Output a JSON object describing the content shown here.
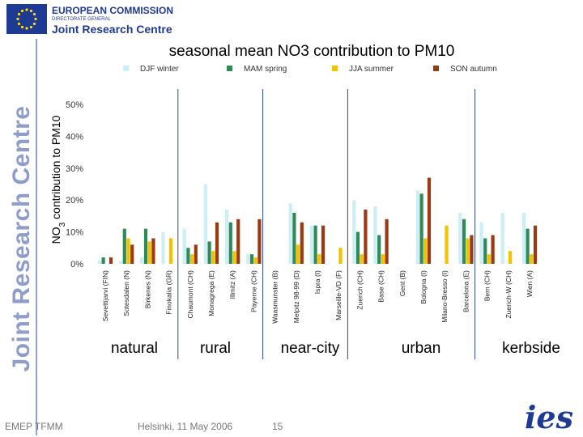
{
  "header": {
    "org_line1": "EUROPEAN COMMISSION",
    "org_line2": "DIRECTORATE GENERAL",
    "org_line3": "Joint Research Centre",
    "side_title": "Joint Research Centre"
  },
  "footer": {
    "left": "EMEP TFMM",
    "center": "Helsinki, 11 May 2006",
    "page": "15",
    "logo": "ies"
  },
  "colors": {
    "DJF winter": "#cceef5",
    "MAM spring": "#2e8b57",
    "JJA summer": "#f2c200",
    "SON autumn": "#9a3a12"
  },
  "chart_data": {
    "type": "bar",
    "title": "seasonal mean NO3 contribution to PM10",
    "ylabel_parts": [
      "NO",
      "3",
      " contribution to PM10"
    ],
    "ylim": [
      0,
      50
    ],
    "ytick_values": [
      0,
      10,
      20,
      30,
      40,
      50
    ],
    "ytick_labels": [
      "0%",
      "10%",
      "20%",
      "30%",
      "40%",
      "50%"
    ],
    "series_names": [
      "DJF winter",
      "MAM spring",
      "JJA summer",
      "SON autumn"
    ],
    "categories": [
      "Sevettijarvi (FIN)",
      "Sotesdalen (N)",
      "Birkenes (N)",
      "Finokalia (GR)",
      "Chaumont (CH)",
      "Monagrega (E)",
      "Illmitz (A)",
      "Payerne (CH)",
      "Waasmunster (B)",
      "Melpitz 98-99 (D)",
      "Ispra (I)",
      "Marseille-VD (F)",
      "Zuerich (CH)",
      "Base (CH)",
      "Gent (B)",
      "Bologna (I)",
      "Milano-Bresso (I)",
      "Barcelona (E)",
      "Bern (CH)",
      "Zuerich-W (CH)",
      "Wien (A)"
    ],
    "series": [
      {
        "name": "DJF winter",
        "values": [
          1,
          1,
          2,
          10,
          11,
          25,
          17,
          3,
          0,
          19,
          12,
          0,
          20,
          18,
          0,
          23,
          0,
          16,
          13,
          16,
          16
        ]
      },
      {
        "name": "MAM spring",
        "values": [
          2,
          11,
          11,
          0,
          5,
          7,
          13,
          3,
          0,
          16,
          12,
          0,
          10,
          9,
          0,
          22,
          0,
          14,
          8,
          0,
          11
        ]
      },
      {
        "name": "JJA summer",
        "values": [
          0,
          8,
          7,
          8,
          3,
          4,
          4,
          2,
          0,
          6,
          3,
          5,
          3,
          3,
          0,
          8,
          12,
          8,
          3,
          4,
          3
        ]
      },
      {
        "name": "SON autumn",
        "values": [
          2,
          6,
          8,
          0,
          6,
          13,
          14,
          14,
          0,
          13,
          12,
          0,
          17,
          14,
          0,
          27,
          0,
          9,
          9,
          0,
          12
        ]
      }
    ],
    "groups": [
      {
        "label": "natural",
        "from": 0,
        "to": 3
      },
      {
        "label": "rural",
        "from": 4,
        "to": 7
      },
      {
        "label": "near-city",
        "from": 8,
        "to": 11
      },
      {
        "label": "urban",
        "from": 12,
        "to": 17
      },
      {
        "label": "kerbside",
        "from": 18,
        "to": 20
      }
    ]
  }
}
